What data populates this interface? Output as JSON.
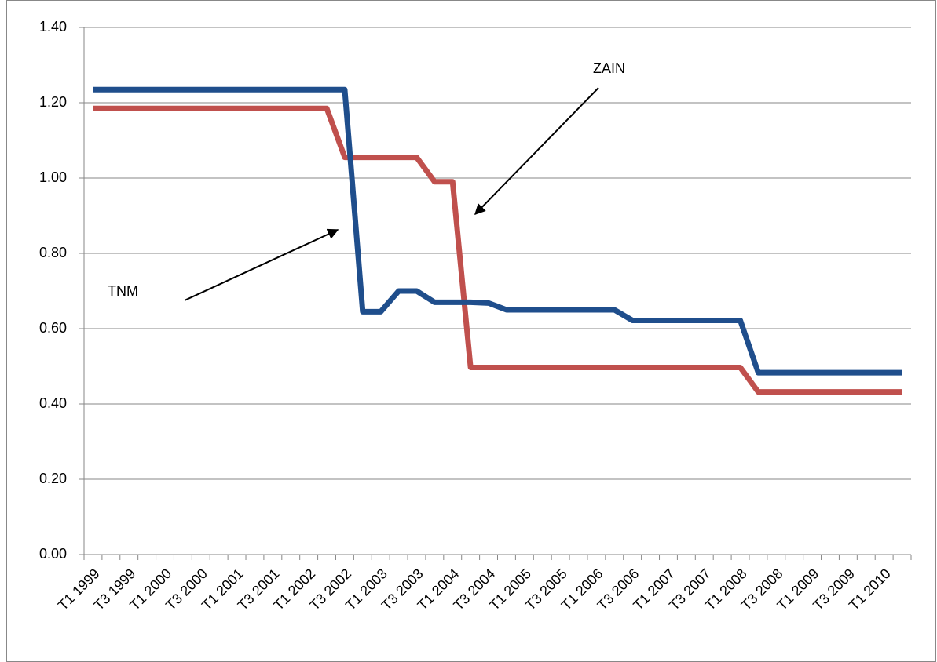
{
  "chart_data": {
    "type": "line",
    "categories": [
      "T1 1999",
      null,
      "T3 1999",
      null,
      "T1 2000",
      null,
      "T3 2000",
      null,
      "T1 2001",
      null,
      "T3 2001",
      null,
      "T1 2002",
      null,
      "T3 2002",
      null,
      "T1 2003",
      null,
      "T3 2003",
      null,
      "T1 2004",
      null,
      "T3 2004",
      null,
      "T1 2005",
      null,
      "T3 2005",
      null,
      "T1 2006",
      null,
      "T3 2006",
      null,
      "T1 2007",
      null,
      "T3 2007",
      null,
      "T1 2008",
      null,
      "T3 2008",
      null,
      "T1 2009",
      null,
      "T3 2009",
      null,
      "T1 2010",
      null
    ],
    "series": [
      {
        "name": "TNM",
        "color": "#1f4e8c",
        "values": [
          1.235,
          1.235,
          1.235,
          1.235,
          1.235,
          1.235,
          1.235,
          1.235,
          1.235,
          1.235,
          1.235,
          1.235,
          1.235,
          1.235,
          1.235,
          0.645,
          0.645,
          0.7,
          0.7,
          0.67,
          0.67,
          0.67,
          0.668,
          0.65,
          0.65,
          0.65,
          0.65,
          0.65,
          0.65,
          0.65,
          0.622,
          0.622,
          0.622,
          0.622,
          0.622,
          0.622,
          0.622,
          0.483,
          0.483,
          0.483,
          0.483,
          0.483,
          0.483,
          0.483,
          0.483,
          0.483
        ]
      },
      {
        "name": "ZAIN",
        "color": "#c0504d",
        "values": [
          1.185,
          1.185,
          1.185,
          1.185,
          1.185,
          1.185,
          1.185,
          1.185,
          1.185,
          1.185,
          1.185,
          1.185,
          1.185,
          1.185,
          1.055,
          1.055,
          1.055,
          1.055,
          1.055,
          0.99,
          0.99,
          0.497,
          0.497,
          0.497,
          0.497,
          0.497,
          0.497,
          0.497,
          0.497,
          0.497,
          0.497,
          0.497,
          0.497,
          0.497,
          0.497,
          0.497,
          0.497,
          0.432,
          0.432,
          0.432,
          0.432,
          0.432,
          0.432,
          0.432,
          0.432,
          0.432
        ]
      }
    ],
    "ylim": [
      0,
      1.4
    ],
    "yticks": [
      {
        "value": 0,
        "label": "0.00"
      },
      {
        "value": 0.2,
        "label": "0.20"
      },
      {
        "value": 0.4,
        "label": "0.40"
      },
      {
        "value": 0.6,
        "label": "0.60"
      },
      {
        "value": 0.8,
        "label": "0.80"
      },
      {
        "value": 1.0,
        "label": "1.00"
      },
      {
        "value": 1.2,
        "label": "1.20"
      },
      {
        "value": 1.4,
        "label": "1.40"
      }
    ],
    "grid": true
  }
}
